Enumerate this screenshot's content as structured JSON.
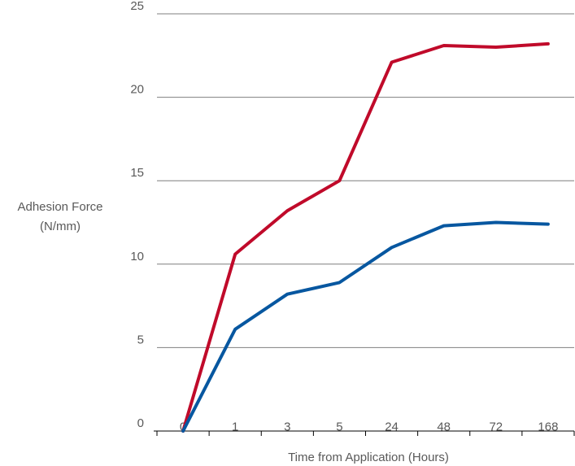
{
  "chart_data": {
    "type": "line",
    "categories": [
      "0",
      "1",
      "3",
      "5",
      "24",
      "48",
      "72",
      "168"
    ],
    "series": [
      {
        "values": [
          0,
          10.6,
          13.2,
          15.0,
          22.1,
          23.1,
          23.0,
          23.2
        ],
        "color": "#c00a2a"
      },
      {
        "values": [
          0,
          6.1,
          8.2,
          8.9,
          11.0,
          12.3,
          12.5,
          12.4
        ],
        "color": "#0757a0"
      }
    ],
    "xlabel": "Time from Application (Hours)",
    "ylabel_line1": "Adhesion Force",
    "ylabel_line2": "(N/mm)",
    "ylim": [
      0,
      25
    ],
    "yticks": [
      "0",
      "5",
      "10",
      "15",
      "20",
      "25"
    ],
    "grid": "horizontal",
    "legend": "none",
    "gridline_color": "#7f7f7f",
    "text_color": "#595959"
  }
}
